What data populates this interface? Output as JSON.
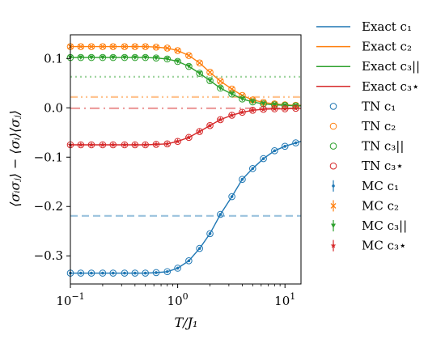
{
  "chart_data": {
    "type": "line",
    "x_scale": "log",
    "xlim": [
      0.1,
      14.1
    ],
    "ylim": [
      -0.357,
      0.148
    ],
    "xlabel": "T/J₁",
    "ylabel": "⟨σᵢσⱼ⟩ − ⟨σᵢ⟩⟨σⱼ⟩",
    "x_ticks": [
      {
        "value": 0.1,
        "base": "10",
        "exp": "−1"
      },
      {
        "value": 1,
        "base": "10",
        "exp": "0"
      },
      {
        "value": 10,
        "base": "10",
        "exp": "1"
      }
    ],
    "y_ticks": [
      {
        "value": 0.1,
        "label": "0.1"
      },
      {
        "value": 0.0,
        "label": "0.0"
      },
      {
        "value": -0.1,
        "label": "−0.1"
      },
      {
        "value": -0.2,
        "label": "−0.2"
      },
      {
        "value": -0.3,
        "label": "−0.3"
      }
    ],
    "legend_position": "outside-right",
    "x": [
      0.1,
      0.125,
      0.157,
      0.2,
      0.25,
      0.32,
      0.4,
      0.5,
      0.63,
      0.8,
      1.0,
      1.27,
      1.6,
      2.0,
      2.5,
      3.2,
      4.0,
      5.0,
      6.3,
      8.0,
      10.0,
      12.6,
      14.1
    ],
    "series": [
      {
        "key": "c1",
        "color": "#1f77b4",
        "asymptote": -0.219,
        "values": [
          -0.335,
          -0.335,
          -0.335,
          -0.335,
          -0.335,
          -0.335,
          -0.335,
          -0.335,
          -0.334,
          -0.332,
          -0.325,
          -0.31,
          -0.285,
          -0.255,
          -0.216,
          -0.18,
          -0.145,
          -0.123,
          -0.103,
          -0.087,
          -0.078,
          -0.071,
          -0.068
        ]
      },
      {
        "key": "c2",
        "color": "#ff7f0e",
        "asymptote": 0.022,
        "values": [
          0.124,
          0.124,
          0.124,
          0.124,
          0.124,
          0.124,
          0.124,
          0.124,
          0.123,
          0.121,
          0.116,
          0.106,
          0.091,
          0.072,
          0.054,
          0.038,
          0.025,
          0.016,
          0.011,
          0.008,
          0.006,
          0.005,
          0.005
        ]
      },
      {
        "key": "c3par",
        "color": "#2ca02c",
        "asymptote": 0.063,
        "values": [
          0.102,
          0.102,
          0.102,
          0.102,
          0.102,
          0.102,
          0.102,
          0.102,
          0.101,
          0.099,
          0.094,
          0.084,
          0.07,
          0.055,
          0.04,
          0.028,
          0.018,
          0.012,
          0.008,
          0.006,
          0.005,
          0.004,
          0.004
        ]
      },
      {
        "key": "c3star",
        "color": "#d62728",
        "asymptote": -0.001,
        "values": [
          -0.075,
          -0.075,
          -0.075,
          -0.075,
          -0.075,
          -0.075,
          -0.075,
          -0.075,
          -0.074,
          -0.073,
          -0.068,
          -0.06,
          -0.048,
          -0.036,
          -0.024,
          -0.015,
          -0.009,
          -0.005,
          -0.003,
          -0.002,
          -0.002,
          -0.001,
          -0.001
        ]
      }
    ],
    "legend": [
      {
        "label": "Exact c₁",
        "series": "c1",
        "kind": "line"
      },
      {
        "label": "Exact c₂",
        "series": "c2",
        "kind": "line"
      },
      {
        "label": "Exact c₃||",
        "series": "c3par",
        "kind": "line"
      },
      {
        "label": "Exact c₃⋆",
        "series": "c3star",
        "kind": "line"
      },
      {
        "label": "TN c₁",
        "series": "c1",
        "kind": "circle"
      },
      {
        "label": "TN c₂",
        "series": "c2",
        "kind": "circle"
      },
      {
        "label": "TN c₃||",
        "series": "c3par",
        "kind": "circle"
      },
      {
        "label": "TN c₃⋆",
        "series": "c3star",
        "kind": "circle"
      },
      {
        "label": "MC c₁",
        "series": "c1",
        "kind": "mc-dot"
      },
      {
        "label": "MC c₂",
        "series": "c2",
        "kind": "mc-x"
      },
      {
        "label": "MC c₃||",
        "series": "c3par",
        "kind": "mc-down"
      },
      {
        "label": "MC c₃⋆",
        "series": "c3star",
        "kind": "mc-star"
      }
    ]
  }
}
